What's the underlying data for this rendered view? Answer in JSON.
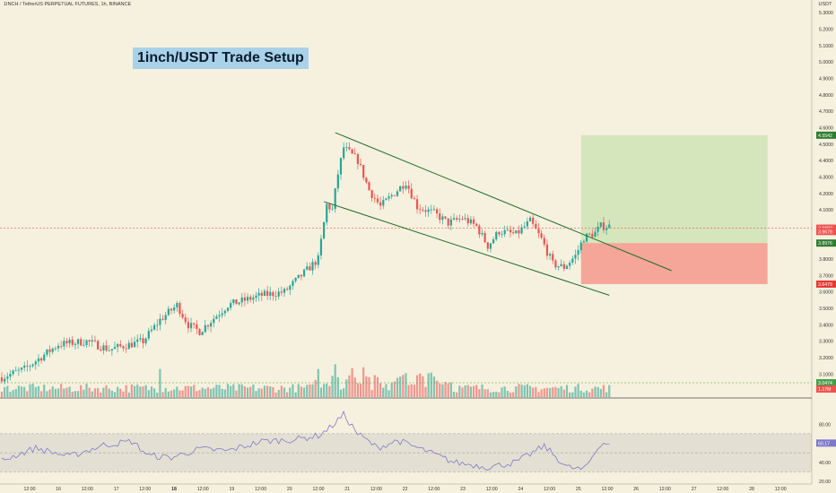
{
  "header": {
    "symbol_text": "1INCH / TetherUS PERPETUAL FUTURES, 1h, BINANCE",
    "currency": "USDT"
  },
  "annotation": {
    "title": "1inch/USDT Trade Setup"
  },
  "colors": {
    "background": "#f6f1de",
    "up": "#26a69a",
    "down": "#ef5350",
    "trendline": "#1e6b2a",
    "target_zone": "#cfe3b6",
    "stop_zone": "#f59d90",
    "rsi_line": "#7e79c9",
    "rsi_band": "#dcd8cf"
  },
  "chart_data": [
    {
      "type": "candlestick",
      "title": "",
      "x_tick_labels": [
        "12:00",
        "16",
        "12:00",
        "17",
        "12:00",
        "18",
        "12:00",
        "19",
        "12:00",
        "20",
        "12:00",
        "21",
        "12:00",
        "22",
        "12:00",
        "23",
        "12:00",
        "24",
        "12:00",
        "25",
        "12:00",
        "26",
        "12:00",
        "27",
        "12:00",
        "28",
        "12:00"
      ],
      "y_tick_labels": [
        "5.3000",
        "5.2000",
        "5.1000",
        "5.0000",
        "4.9000",
        "4.8000",
        "4.7000",
        "4.6000",
        "4.5000",
        "4.4000",
        "4.3000",
        "4.2000",
        "4.1000",
        "4.0000",
        "3.9000",
        "3.8000",
        "3.7000",
        "3.6000",
        "3.5000",
        "3.4000",
        "3.3000",
        "3.2000",
        "3.1000",
        "3.0000"
      ],
      "ylim": [
        2.96,
        5.35
      ],
      "candle_count": 216,
      "close_path_anchors": [
        [
          0,
          3.08
        ],
        [
          8,
          3.13
        ],
        [
          20,
          3.28
        ],
        [
          30,
          3.3
        ],
        [
          38,
          3.25
        ],
        [
          50,
          3.3
        ],
        [
          56,
          3.43
        ],
        [
          62,
          3.52
        ],
        [
          66,
          3.4
        ],
        [
          70,
          3.36
        ],
        [
          80,
          3.52
        ],
        [
          92,
          3.58
        ],
        [
          100,
          3.6
        ],
        [
          106,
          3.7
        ],
        [
          112,
          3.8
        ],
        [
          115,
          4.13
        ],
        [
          117,
          4.1
        ],
        [
          119,
          4.32
        ],
        [
          121,
          4.48
        ],
        [
          126,
          4.4
        ],
        [
          130,
          4.22
        ],
        [
          134,
          4.12
        ],
        [
          140,
          4.22
        ],
        [
          143,
          4.27
        ],
        [
          147,
          4.12
        ],
        [
          153,
          4.08
        ],
        [
          158,
          4.02
        ],
        [
          163,
          4.05
        ],
        [
          168,
          4.0
        ],
        [
          172,
          3.88
        ],
        [
          176,
          3.97
        ],
        [
          182,
          3.95
        ],
        [
          187,
          4.03
        ],
        [
          191,
          3.92
        ],
        [
          195,
          3.77
        ],
        [
          199,
          3.75
        ],
        [
          203,
          3.82
        ],
        [
          206,
          3.93
        ],
        [
          210,
          3.96
        ],
        [
          212,
          4.0
        ]
      ],
      "annotations_price_labels": [
        {
          "text": "4.5542",
          "price": 4.5542,
          "color": "#2e7d32"
        },
        {
          "text": "3.9882",
          "price": 3.9882,
          "color": "#ef5350"
        },
        {
          "text": "3.9679",
          "price": 3.9679,
          "color": "#ef5350"
        },
        {
          "text": "3.8976",
          "price": 3.8976,
          "color": "#2e7d32"
        },
        {
          "text": "3.6479",
          "price": 3.6479,
          "color": "#e53935"
        }
      ],
      "trade_setup": {
        "target": 4.5542,
        "entry": 3.8976,
        "stop": 3.6479,
        "start_index": 205,
        "end_index": 271
      },
      "trendlines": [
        {
          "name": "",
          "points": [
            [
              118,
              4.57
            ],
            [
              237,
              3.73
            ]
          ]
        },
        {
          "name": "",
          "points": [
            [
              114,
              4.15
            ],
            [
              215,
              3.58
            ]
          ]
        }
      ],
      "grid": false
    },
    {
      "type": "bar",
      "title": "",
      "series": [
        {
          "name": "",
          "note_values_generated": false
        }
      ],
      "volume_labels": [
        {
          "text": "3.0474",
          "color": "#43a047"
        },
        {
          "text": "1.17M",
          "color": "#ef5350"
        }
      ]
    },
    {
      "type": "line",
      "title": "",
      "y_tick_labels": [
        "80.00",
        "60.00",
        "40.00",
        "20.00"
      ],
      "ylim": [
        20,
        100
      ],
      "band": [
        30,
        70
      ],
      "midline": 50,
      "last_value_label": "60.17",
      "value_path_anchors": [
        [
          0,
          42
        ],
        [
          12,
          55
        ],
        [
          24,
          46
        ],
        [
          36,
          58
        ],
        [
          46,
          62
        ],
        [
          52,
          47
        ],
        [
          60,
          45
        ],
        [
          70,
          54
        ],
        [
          80,
          52
        ],
        [
          92,
          62
        ],
        [
          104,
          64
        ],
        [
          112,
          68
        ],
        [
          116,
          76
        ],
        [
          121,
          90
        ],
        [
          126,
          70
        ],
        [
          133,
          55
        ],
        [
          140,
          63
        ],
        [
          150,
          52
        ],
        [
          160,
          40
        ],
        [
          172,
          35
        ],
        [
          182,
          40
        ],
        [
          192,
          57
        ],
        [
          200,
          35
        ],
        [
          206,
          32
        ],
        [
          212,
          60
        ],
        [
          216,
          60
        ]
      ]
    }
  ]
}
